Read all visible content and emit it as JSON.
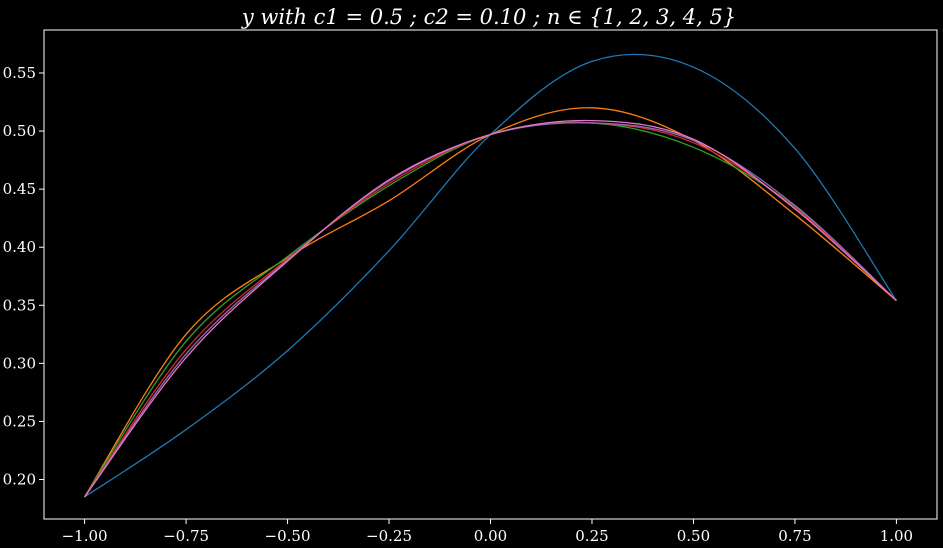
{
  "chart_data": {
    "type": "line",
    "title": "y with c1 = 0.5 ; c2 = 0.10 ; n ∈ {1, 2, 3, 4, 5}",
    "xlabel": "",
    "ylabel": "",
    "xlim": [
      -1.1,
      1.1
    ],
    "ylim": [
      0.166,
      0.587
    ],
    "grid": false,
    "background": "#000000",
    "x_ticks": [
      -1.0,
      -0.75,
      -0.5,
      -0.25,
      0.0,
      0.25,
      0.5,
      0.75,
      1.0
    ],
    "x_tick_labels": [
      "−1.00",
      "−0.75",
      "−0.50",
      "−0.25",
      "0.00",
      "0.25",
      "0.50",
      "0.75",
      "1.00"
    ],
    "y_ticks": [
      0.2,
      0.25,
      0.3,
      0.35,
      0.4,
      0.45,
      0.5,
      0.55
    ],
    "y_tick_labels": [
      "0.20",
      "0.25",
      "0.30",
      "0.35",
      "0.40",
      "0.45",
      "0.50",
      "0.55"
    ],
    "x": [
      -1.0,
      -0.75,
      -0.5,
      -0.25,
      0.0,
      0.25,
      0.5,
      0.75,
      1.0
    ],
    "series": [
      {
        "color": "#1f77b4",
        "values": [
          0.185,
          0.243,
          0.311,
          0.397,
          0.497,
          0.56,
          0.555,
          0.485,
          0.354
        ]
      },
      {
        "color": "#ff7f0e",
        "values": [
          0.185,
          0.325,
          0.391,
          0.44,
          0.497,
          0.52,
          0.492,
          0.428,
          0.354
        ]
      },
      {
        "color": "#2ca02c",
        "values": [
          0.185,
          0.319,
          0.392,
          0.453,
          0.497,
          0.507,
          0.486,
          0.435,
          0.354
        ]
      },
      {
        "color": "#d62728",
        "values": [
          0.185,
          0.312,
          0.39,
          0.455,
          0.497,
          0.507,
          0.49,
          0.434,
          0.354
        ]
      },
      {
        "color": "#9467bd",
        "values": [
          0.185,
          0.308,
          0.389,
          0.457,
          0.497,
          0.507,
          0.492,
          0.436,
          0.354
        ]
      },
      {
        "color": "#e377c2",
        "values": [
          0.185,
          0.305,
          0.388,
          0.458,
          0.497,
          0.509,
          0.493,
          0.433,
          0.354
        ]
      }
    ]
  }
}
